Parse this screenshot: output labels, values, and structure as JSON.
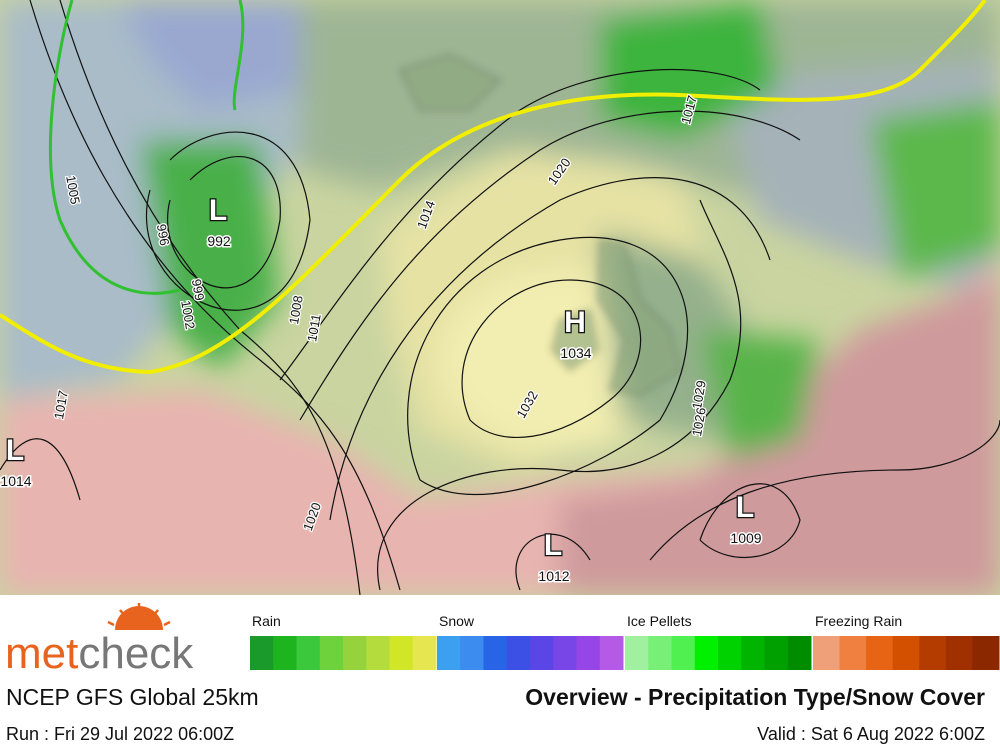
{
  "logo": [
    "met",
    "check"
  ],
  "model": "NCEP GFS Global 25km",
  "title": "Overview - Precipitation Type/Snow Cover",
  "run": "Run : Fri 29 Jul 2022 06:00Z",
  "valid": "Valid : Sat 6 Aug 2022 6:00Z",
  "legend": [
    {
      "name": "Rain",
      "colors": [
        "#1a9a2a",
        "#1eb41e",
        "#3cc83c",
        "#6ed23c",
        "#96d23c",
        "#b4dc3c",
        "#d2e628",
        "#e6e650"
      ]
    },
    {
      "name": "Snow",
      "colors": [
        "#3ca0f0",
        "#3c8cf0",
        "#2864e6",
        "#3c50e6",
        "#5a46e6",
        "#7846e6",
        "#9646e6",
        "#b45ae6"
      ]
    },
    {
      "name": "Ice Pellets",
      "colors": [
        "#a0f0a0",
        "#78f078",
        "#50f050",
        "#00f000",
        "#00d200",
        "#00b400",
        "#00a000",
        "#008c00"
      ]
    },
    {
      "name": "Freezing Rain",
      "colors": [
        "#f0a078",
        "#f08040",
        "#e66414",
        "#d25000",
        "#b43c00",
        "#a03000",
        "#8c2800"
      ]
    }
  ],
  "pressure_centers": [
    {
      "type": "L",
      "value": 992
    },
    {
      "type": "H",
      "value": 1034
    },
    {
      "type": "L",
      "value": 1014
    },
    {
      "type": "L",
      "value": 1012
    },
    {
      "type": "L",
      "value": 1009
    }
  ],
  "isobar_labels": [
    1005,
    996,
    999,
    1002,
    1008,
    1011,
    1014,
    1020,
    1017,
    1032,
    1029,
    1026,
    1020,
    1017
  ]
}
